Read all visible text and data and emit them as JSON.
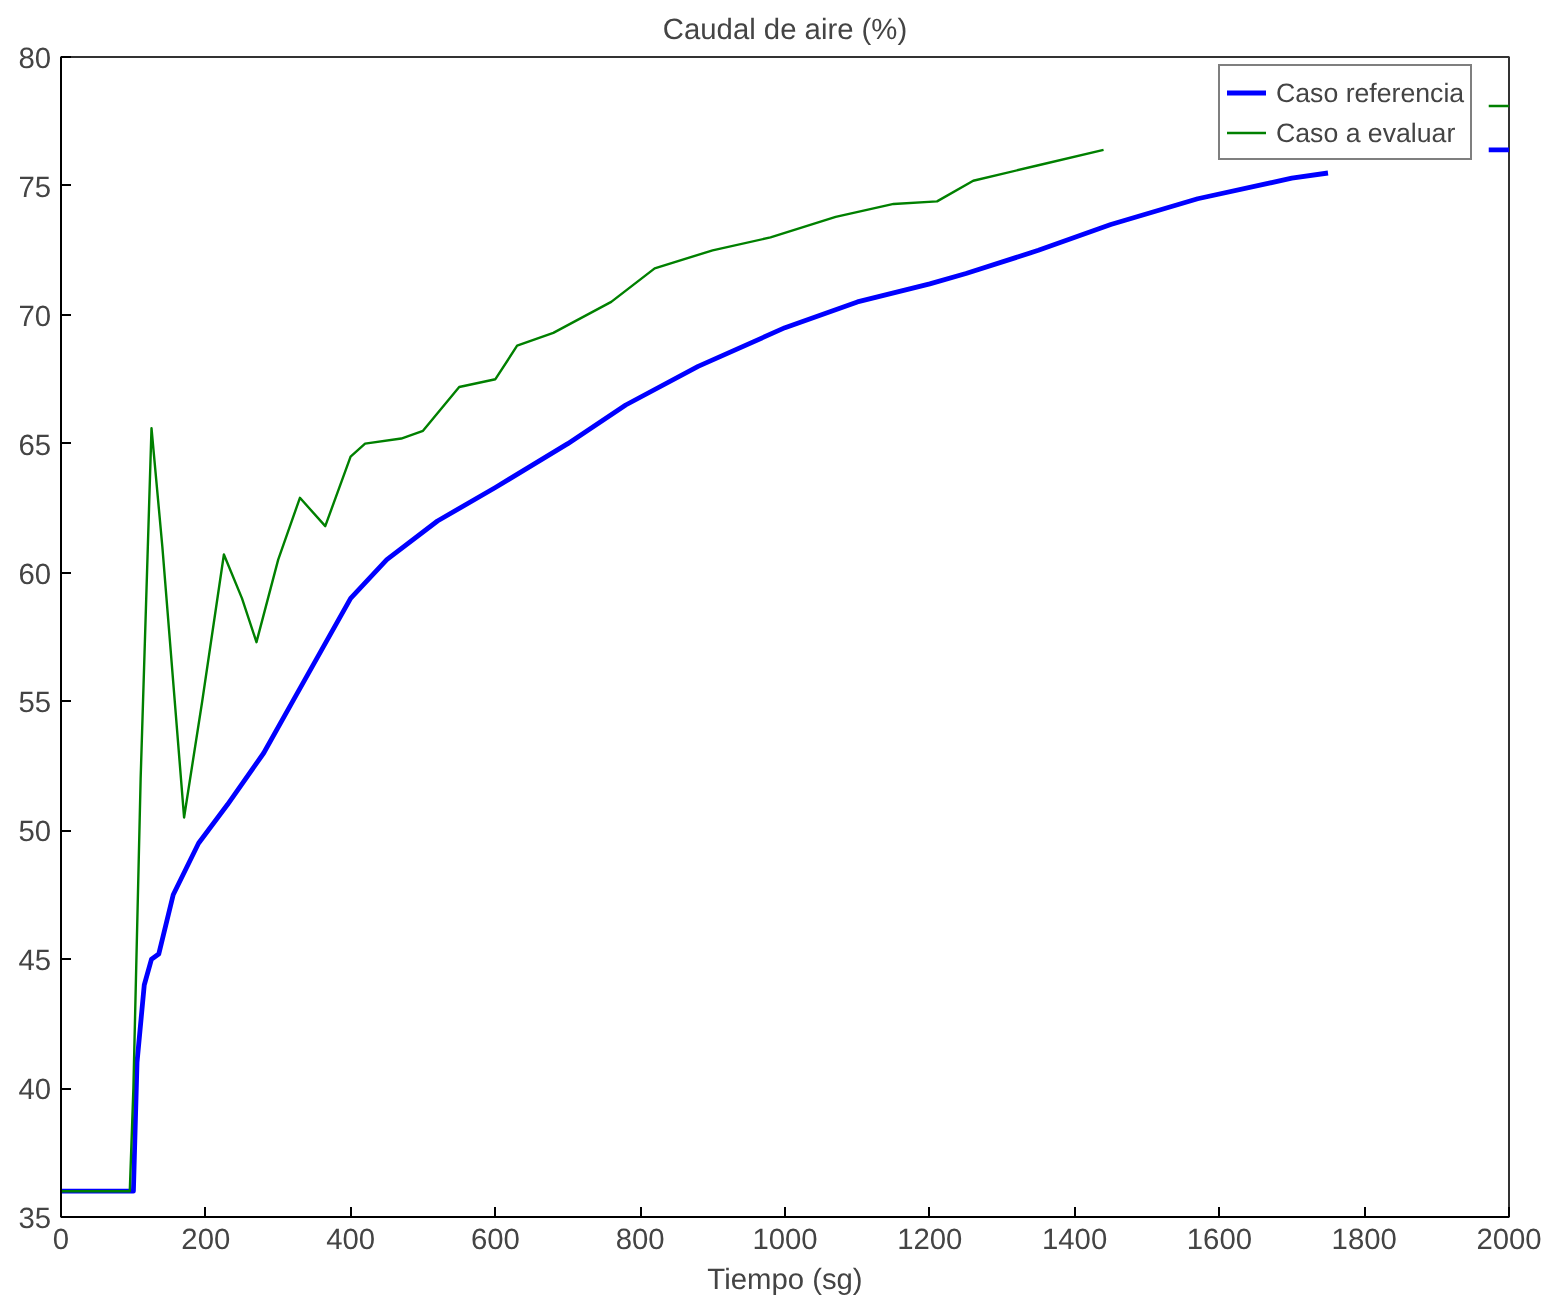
{
  "chart_data": {
    "type": "line",
    "title": "Caudal de aire (%)",
    "xlabel": "Tiempo (sg)",
    "xlim": [
      0,
      2000
    ],
    "xticks": [
      0,
      200,
      400,
      600,
      800,
      1000,
      1200,
      1400,
      1600,
      1800,
      2000
    ],
    "ylim": [
      35,
      80
    ],
    "yticks": [
      35,
      40,
      45,
      50,
      55,
      60,
      65,
      70,
      75,
      80
    ],
    "grid": false,
    "legend": "top right",
    "line_style": "solid",
    "marker": "none",
    "series": [
      {
        "name": "Caso referencia",
        "color": "#0000ff",
        "x": [
          0,
          50,
          100,
          105,
          115,
          125,
          135,
          155,
          190,
          230,
          280,
          320,
          360,
          400,
          450,
          520,
          600,
          700,
          780,
          880,
          1000,
          1100,
          1200,
          1250,
          1350,
          1450,
          1570,
          1700,
          1750,
          1760,
          1972,
          2000
        ],
        "values": [
          36,
          36,
          36,
          41,
          44,
          45,
          45.2,
          47.5,
          49.5,
          51,
          53,
          55,
          57,
          59,
          60.5,
          62,
          63.3,
          65,
          66.5,
          68,
          69.5,
          70.5,
          71.2,
          71.6,
          72.5,
          73.5,
          74.5,
          75.3,
          75.5,
          null,
          76.4,
          76.4
        ]
      },
      {
        "name": "Caso a evaluar",
        "color": "#008000",
        "x": [
          0,
          50,
          95,
          100,
          110,
          125,
          140,
          170,
          195,
          225,
          250,
          270,
          300,
          330,
          365,
          400,
          420,
          470,
          500,
          550,
          600,
          630,
          680,
          760,
          820,
          900,
          980,
          1070,
          1150,
          1210,
          1260,
          1350,
          1440,
          1460,
          1972,
          2000
        ],
        "values": [
          36,
          36,
          36,
          40,
          52,
          65.6,
          61,
          50.5,
          55,
          60.7,
          59,
          57.3,
          60.5,
          62.9,
          61.8,
          64.5,
          65,
          65.2,
          65.5,
          67.2,
          67.5,
          68.8,
          69.3,
          70.5,
          71.8,
          72.5,
          73,
          73.8,
          74.3,
          74.4,
          75.2,
          75.8,
          76.4,
          null,
          78.1,
          78.1
        ]
      }
    ]
  }
}
